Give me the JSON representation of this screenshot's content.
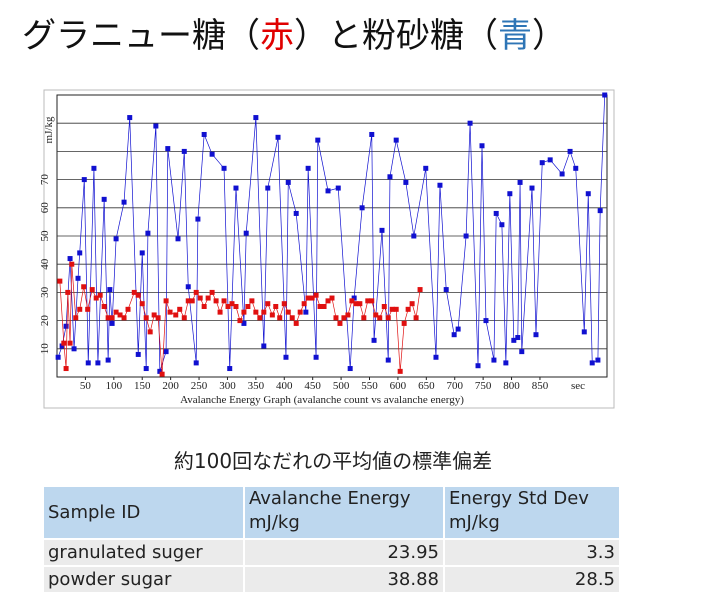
{
  "title_parts": [
    "グラニュー糖（",
    "赤",
    "）と粉砂糖（",
    "青",
    "）"
  ],
  "chart_data": {
    "type": "line",
    "xlabel": "Avalanche Energy Graph   (avalanche count vs avalanche energy)",
    "ylabel": "mJ/kg",
    "xunit": "sec",
    "xlim": [
      0,
      968
    ],
    "ylim": [
      0,
      100
    ],
    "xticks": [
      50,
      100,
      150,
      200,
      250,
      300,
      350,
      400,
      450,
      500,
      550,
      600,
      650,
      700,
      750,
      800,
      850
    ],
    "yticks": [
      10,
      20,
      30,
      40,
      50,
      60,
      70
    ],
    "ygrid": [
      80,
      90
    ],
    "grid": true,
    "series": [
      {
        "color": "#1010d0",
        "x": [
          2,
          9,
          16,
          23,
          30,
          37,
          40,
          48,
          55,
          65,
          72,
          83,
          90,
          93,
          97,
          104,
          118,
          128,
          143,
          150,
          157,
          160,
          174,
          181,
          192,
          195,
          213,
          224,
          231,
          245,
          248,
          259,
          273,
          294,
          304,
          315,
          329,
          333,
          350,
          364,
          371,
          389,
          403,
          407,
          421,
          438,
          442,
          456,
          459,
          477,
          495,
          516,
          523,
          537,
          554,
          558,
          572,
          583,
          586,
          597,
          614,
          628,
          649,
          667,
          674,
          685,
          699,
          706,
          720,
          727,
          741,
          748,
          755,
          769,
          773,
          783,
          790,
          797,
          804,
          811,
          815,
          818,
          836,
          843,
          854,
          868,
          889,
          903,
          913,
          928,
          935,
          942,
          952,
          956,
          964
        ],
        "values": [
          7,
          11,
          18,
          42,
          10,
          35,
          44,
          70,
          5,
          74,
          5,
          63,
          6,
          31,
          19,
          49,
          62,
          92,
          8,
          44,
          3,
          51,
          89,
          2,
          9,
          81,
          49,
          80,
          32,
          5,
          56,
          86,
          79,
          74,
          3,
          67,
          19,
          51,
          92,
          11,
          67,
          85,
          7,
          69,
          58,
          23,
          74,
          7,
          84,
          66,
          67,
          3,
          28,
          60,
          86,
          13,
          52,
          6,
          71,
          84,
          69,
          50,
          74,
          7,
          68,
          31,
          15,
          17,
          50,
          90,
          4,
          82,
          20,
          6,
          58,
          54,
          5,
          65,
          13,
          14,
          69,
          9,
          67,
          15,
          76,
          77,
          72,
          80,
          74,
          16,
          65,
          5,
          6,
          59,
          100
        ]
      },
      {
        "color": "#e01010",
        "x": [
          5,
          12,
          16,
          19,
          23,
          26,
          33,
          40,
          47,
          54,
          62,
          69,
          76,
          83,
          90,
          97,
          104,
          111,
          118,
          125,
          136,
          143,
          150,
          157,
          164,
          171,
          178,
          185,
          192,
          199,
          209,
          216,
          224,
          231,
          238,
          245,
          252,
          259,
          266,
          273,
          280,
          287,
          294,
          301,
          308,
          315,
          322,
          329,
          336,
          343,
          350,
          357,
          364,
          371,
          379,
          385,
          392,
          400,
          407,
          414,
          421,
          428,
          435,
          442,
          449,
          456,
          463,
          470,
          477,
          484,
          491,
          498,
          505,
          512,
          519,
          526,
          533,
          540,
          547,
          554,
          561,
          568,
          576,
          583,
          590,
          597,
          604,
          611,
          618,
          625,
          632,
          639
        ],
        "values": [
          34,
          12,
          3,
          30,
          12,
          40,
          21,
          24,
          32,
          24,
          31,
          28,
          29,
          25,
          21,
          21,
          23,
          22,
          21,
          24,
          30,
          29,
          26,
          21,
          16,
          22,
          21,
          1,
          27,
          23,
          22,
          24,
          21,
          27,
          27,
          30,
          28,
          25,
          28,
          30,
          27,
          23,
          27,
          25,
          26,
          25,
          20,
          23,
          25,
          27,
          23,
          21,
          23,
          26,
          22,
          25,
          21,
          26,
          23,
          21,
          19,
          23,
          26,
          28,
          28,
          29,
          25,
          25,
          27,
          28,
          21,
          19,
          21,
          22,
          27,
          26,
          26,
          21,
          27,
          27,
          22,
          21,
          25,
          21,
          24,
          24,
          2,
          19,
          24,
          26,
          21,
          31
        ]
      }
    ]
  },
  "subtitle": "約100回なだれの平均値の標準偏差",
  "table": {
    "header": [
      [
        "Sample ID"
      ],
      [
        "Avalanche Energy",
        "mJ/kg"
      ],
      [
        "Energy Std Dev",
        "mJ/kg"
      ]
    ],
    "rows": [
      [
        "granulated suger",
        "23.95",
        "3.3"
      ],
      [
        "powder sugar",
        "38.88",
        "28.5"
      ]
    ]
  }
}
